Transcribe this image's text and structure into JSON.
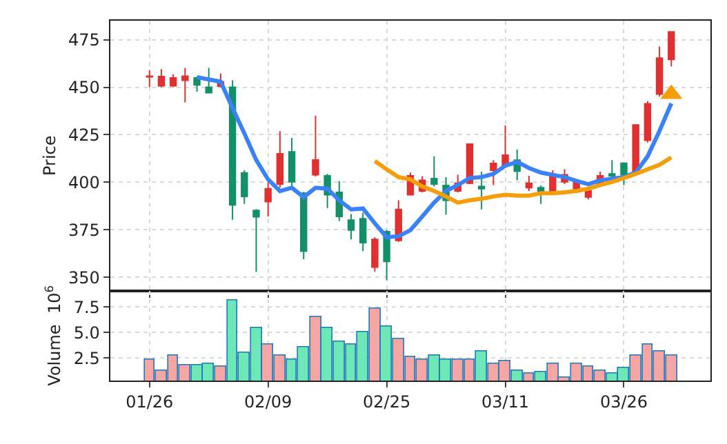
{
  "chart_data": [
    {
      "type": "candlestick",
      "ylabel": "Price",
      "ylim": [
        343,
        485
      ],
      "yticks": [
        350,
        375,
        400,
        425,
        450,
        475
      ],
      "grid": true,
      "tick_labels": "y",
      "categories": [
        null,
        null,
        null,
        null,
        null,
        null,
        null,
        null,
        null,
        null,
        null,
        null,
        null,
        null,
        null,
        null,
        null,
        null,
        null,
        null,
        null,
        null,
        null,
        null,
        null,
        null,
        null,
        null,
        null,
        null,
        null,
        null,
        null,
        null,
        null,
        null,
        null,
        null,
        null,
        null,
        null,
        null,
        null,
        null,
        null
      ],
      "ohlc": [
        [
          455.4,
          459,
          450,
          455.8
        ],
        [
          450.7,
          459.5,
          450,
          455.6
        ],
        [
          450.7,
          456.8,
          450,
          454.9
        ],
        [
          453.6,
          460.2,
          442,
          455.8
        ],
        [
          454.9,
          455.6,
          447.6,
          451.2
        ],
        [
          450,
          460.2,
          447.1,
          447.1
        ],
        [
          450.5,
          457.3,
          450,
          452.9
        ],
        [
          450,
          453.6,
          380.3,
          388.1
        ],
        [
          404.9,
          406.3,
          388.6,
          392.5
        ],
        [
          385.2,
          385.9,
          352.9,
          381.8
        ],
        [
          389.8,
          400.2,
          382,
          396.6
        ],
        [
          399,
          426.9,
          397.1,
          415
        ],
        [
          416,
          423.3,
          397.1,
          400.2
        ],
        [
          394.2,
          395,
          359.5,
          363.8
        ],
        [
          403.9,
          435,
          403,
          411.7
        ],
        [
          403.4,
          404.4,
          386.4,
          393.4
        ],
        [
          394.7,
          400.7,
          379.6,
          382
        ],
        [
          380.1,
          383.3,
          369.9,
          374.8
        ],
        [
          380.8,
          384,
          363.8,
          368.2
        ],
        [
          355.3,
          371.1,
          352.9,
          369.9
        ],
        [
          374,
          374.8,
          348.5,
          358.3
        ],
        [
          369.4,
          390.5,
          368.7,
          385.7
        ],
        [
          393.4,
          405.1,
          393,
          403.4
        ],
        [
          395.4,
          403.2,
          394.7,
          401
        ],
        [
          401.9,
          413.6,
          397.8,
          399
        ],
        [
          398.3,
          402.7,
          382.9,
          390.5
        ],
        [
          395.4,
          403.9,
          394.7,
          399.5
        ],
        [
          399.5,
          420.1,
          399,
          420.1
        ],
        [
          397.8,
          405.6,
          385.7,
          396.6
        ],
        [
          406.3,
          411.6,
          398.5,
          409.9
        ],
        [
          408.7,
          429.9,
          407.5,
          414.3
        ],
        [
          411.6,
          417.2,
          401,
          405.8
        ],
        [
          397.1,
          403.4,
          395.4,
          399.5
        ],
        [
          397.1,
          398.3,
          388.6,
          395.4
        ],
        [
          395.4,
          406.3,
          394.7,
          403.9
        ],
        [
          400.2,
          406.8,
          399,
          403.9
        ],
        [
          396.6,
          401.5,
          395.4,
          400.2
        ],
        [
          392.2,
          396.6,
          391,
          395.4
        ],
        [
          399,
          405.6,
          398,
          403.4
        ],
        [
          404.4,
          411.6,
          402.7,
          403.4
        ],
        [
          410,
          410,
          398.5,
          403.9
        ],
        [
          405.1,
          430.6,
          405.1,
          430.1
        ],
        [
          422.1,
          442.7,
          420.9,
          441.3
        ],
        [
          446.4,
          471.4,
          445.1,
          465.3
        ],
        [
          464.6,
          479.1,
          460.9,
          479.1
        ]
      ],
      "series": [
        {
          "type": "line",
          "color": "#3b82f6",
          "values": [
            null,
            null,
            null,
            null,
            455.3,
            454.1,
            452.9,
            439.1,
            425.7,
            411.7,
            401.5,
            395.4,
            397.1,
            392.2,
            397.1,
            396.6,
            390.5,
            385.7,
            386.2,
            378.4,
            371.1,
            371.6,
            374.8,
            382,
            389.3,
            395.4,
            398.5,
            402.2,
            402.7,
            404.4,
            408.7,
            410.7,
            407.5,
            405.1,
            403.9,
            402.7,
            400.7,
            399,
            401,
            401.9,
            402.7,
            405.1,
            413.6,
            427,
            441.5
          ]
        },
        {
          "type": "line",
          "color": "#f59e0b",
          "values": [
            null,
            null,
            null,
            null,
            null,
            null,
            null,
            null,
            null,
            null,
            null,
            null,
            null,
            null,
            null,
            null,
            null,
            null,
            null,
            411.2,
            406.8,
            402.7,
            401.5,
            397.8,
            395.4,
            392.5,
            389.3,
            390.5,
            391.3,
            392.5,
            393.4,
            393,
            393,
            394.2,
            394.2,
            394.7,
            395.4,
            396.6,
            398.5,
            400.2,
            402.2,
            404.4,
            406.8,
            409.2,
            413.1
          ]
        },
        {
          "type": "scatter",
          "marker": "triangle",
          "color": "#f59e0b",
          "values": [
            null,
            null,
            null,
            null,
            null,
            null,
            null,
            null,
            null,
            null,
            null,
            null,
            null,
            null,
            null,
            null,
            null,
            null,
            null,
            null,
            null,
            null,
            null,
            null,
            null,
            null,
            null,
            null,
            null,
            null,
            null,
            null,
            null,
            null,
            null,
            null,
            null,
            null,
            null,
            null,
            null,
            null,
            null,
            null,
            446.4
          ]
        }
      ]
    },
    {
      "type": "bar",
      "ylabel": "Volume  10$^{6}$",
      "ylim": [
        0.3,
        9.1
      ],
      "yticks": [
        2.5,
        {
          "value": 5,
          "label": "5.0"
        },
        7.5
      ],
      "grid": true,
      "categories": [
        "01/26",
        null,
        null,
        null,
        null,
        null,
        null,
        null,
        null,
        null,
        "02/09",
        null,
        null,
        null,
        null,
        null,
        null,
        null,
        null,
        null,
        "02/25",
        null,
        null,
        null,
        null,
        null,
        null,
        null,
        null,
        null,
        "03/11",
        null,
        null,
        null,
        null,
        null,
        null,
        null,
        null,
        null,
        "03/26",
        null,
        null,
        null,
        null
      ],
      "values": [
        2.4,
        1.3,
        2.7,
        1.8,
        1.8,
        1.9,
        1.7,
        8.2,
        3.0,
        5.5,
        3.8,
        2.8,
        2.4,
        3.6,
        6.5,
        5.5,
        4.1,
        3.9,
        5.0,
        7.3,
        5.6,
        4.4,
        2.6,
        2.3,
        2.7,
        2.4,
        2.4,
        2.4,
        3.2,
        1.9,
        2.2,
        1.3,
        1.0,
        1.2,
        2.0,
        0.6,
        1.9,
        1.7,
        1.3,
        1.0,
        1.5,
        2.7,
        3.8,
        3.2,
        2.8
      ],
      "colors": [
        "#f6a5a5",
        "#f6a5a5",
        "#f6a5a5",
        "#f6a5a5",
        "#6ee7b7",
        "#6ee7b7",
        "#f6a5a5",
        "#6ee7b7",
        "#6ee7b7",
        "#6ee7b7",
        "#f6a5a5",
        "#f6a5a5",
        "#6ee7b7",
        "#6ee7b7",
        "#f6a5a5",
        "#6ee7b7",
        "#6ee7b7",
        "#6ee7b7",
        "#6ee7b7",
        "#f6a5a5",
        "#6ee7b7",
        "#f6a5a5",
        "#f6a5a5",
        "#f6a5a5",
        "#6ee7b7",
        "#6ee7b7",
        "#f6a5a5",
        "#f6a5a5",
        "#6ee7b7",
        "#f6a5a5",
        "#f6a5a5",
        "#6ee7b7",
        "#f6a5a5",
        "#6ee7b7",
        "#f6a5a5",
        "#f6a5a5",
        "#f6a5a5",
        "#f6a5a5",
        "#f6a5a5",
        "#6ee7b7",
        "#6ee7b7",
        "#f6a5a5",
        "#f6a5a5",
        "#f6a5a5",
        "#f6a5a5"
      ]
    }
  ]
}
